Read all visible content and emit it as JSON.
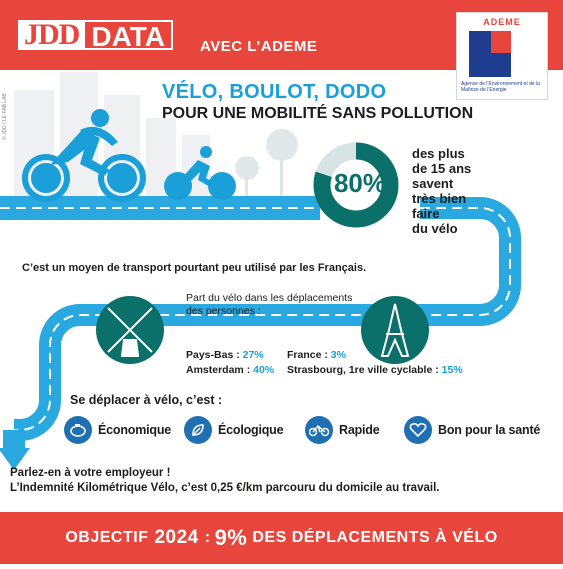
{
  "header": {
    "brand_main": "JDD",
    "brand_data": "DATA",
    "partner_text": "AVEC L’ADEME"
  },
  "ademe": {
    "name": "ADEME",
    "subtitle": "Agence de l’Environnement et de la Maîtrise de l’Energie"
  },
  "title": {
    "line1": "VÉLO, BOULOT, DODO",
    "line2": "POUR UNE MOBILITÉ SANS POLLUTION"
  },
  "credit": "© JDD / LE FAB LAB",
  "stat": {
    "value": "80%",
    "fraction": 0.8,
    "text": [
      "des plus",
      "de 15 ans",
      "savent",
      "très bien",
      "faire",
      "du vélo"
    ]
  },
  "moyen_text": "C’est un moyen de transport pourtant peu utilisé par les Français.",
  "part_text": "Part du vélo dans les déplacements des personnes :",
  "left_rows": [
    {
      "label": "Pays-Bas : ",
      "value": "27%"
    },
    {
      "label": "Amsterdam : ",
      "value": "40%"
    }
  ],
  "right_rows": [
    {
      "label": "France : ",
      "value": "3%"
    },
    {
      "label": "Strasbourg, 1re ville cyclable : ",
      "value": "15%"
    }
  ],
  "deplacer": "Se déplacer à vélo, c’est :",
  "benefits": [
    {
      "label": "Économique",
      "icon": "piggy-bank-icon"
    },
    {
      "label": "Écologique",
      "icon": "leaf-icon"
    },
    {
      "label": "Rapide",
      "icon": "bike-icon"
    },
    {
      "label": "Bon pour la santé",
      "icon": "heart-icon"
    }
  ],
  "employer": {
    "line1": "Parlez-en à votre employeur !",
    "line2": "L’Indemnité Kilométrique Vélo, c’est 0,25 €/km parcouru du domicile au travail."
  },
  "footer": {
    "prefix": "OBJECTIF",
    "year": "2024",
    "colon": ":",
    "percent": "9%",
    "suffix": "DES DÉPLACEMENTS À VÉLO"
  },
  "colors": {
    "red": "#e8463c",
    "blue": "#1a9fd8",
    "dark_blue": "#1f6fb2",
    "teal": "#0b6f6a"
  }
}
